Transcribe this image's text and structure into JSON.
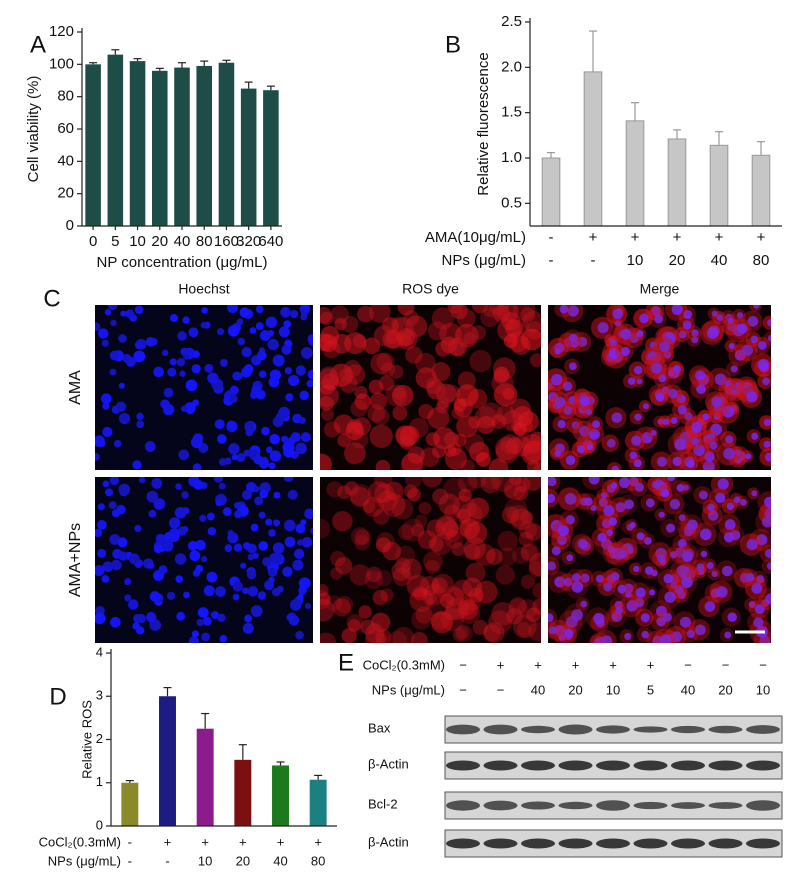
{
  "chart_data": [
    {
      "type": "bar",
      "panel": "A",
      "ylabel": "Cell viability (%)",
      "xlabel": "NP concentration (μg/mL)",
      "categories": [
        "0",
        "5",
        "10",
        "20",
        "40",
        "80",
        "160",
        "320",
        "640"
      ],
      "values": [
        100,
        106,
        102,
        96,
        98,
        99,
        101,
        85,
        84
      ],
      "errors": [
        1,
        3,
        1.5,
        1.5,
        3,
        3,
        1.5,
        4,
        2.5
      ],
      "color": "#1e4d47",
      "ylim": [
        0,
        120
      ],
      "yticks": [
        0,
        20,
        40,
        60,
        80,
        100,
        120
      ]
    },
    {
      "type": "bar",
      "panel": "B",
      "ylabel": "Relative fluorescence",
      "conditions": [
        {
          "label": "AMA(10μg/mL)",
          "values": [
            "-",
            "+",
            "+",
            "+",
            "+",
            "+"
          ]
        },
        {
          "label": "NPs (μg/mL)",
          "values": [
            "-",
            "-",
            "10",
            "20",
            "40",
            "80"
          ]
        }
      ],
      "values": [
        1.0,
        1.95,
        1.41,
        1.21,
        1.14,
        1.03
      ],
      "errors": [
        0.06,
        0.45,
        0.2,
        0.1,
        0.15,
        0.15
      ],
      "color": "#c6c6c6",
      "ylim": [
        0.25,
        2.5
      ],
      "yticks": [
        0.5,
        {
          "value": 1,
          "label": "1.0"
        },
        1.5,
        {
          "value": 2,
          "label": "2.0"
        },
        2.5
      ]
    },
    {
      "type": "bar",
      "panel": "D",
      "ylabel": "Relative ROS",
      "conditions": [
        {
          "label": "CoCl₂(0.3mM)",
          "values": [
            "-",
            "+",
            "+",
            "+",
            "+",
            "+"
          ]
        },
        {
          "label": "NPs (μg/mL)",
          "values": [
            "-",
            "-",
            "10",
            "20",
            "40",
            "80"
          ]
        }
      ],
      "values": [
        1.0,
        3.0,
        2.25,
        1.53,
        1.4,
        1.07
      ],
      "errors": [
        0.05,
        0.2,
        0.35,
        0.35,
        0.08,
        0.1
      ],
      "colors": [
        "#8a8a2a",
        "#1c1c82",
        "#8c1c8c",
        "#7a1010",
        "#1c7a1c",
        "#1c8080"
      ],
      "ylim": [
        0,
        4
      ],
      "yticks": [
        0,
        1,
        2,
        3,
        4
      ]
    }
  ],
  "microscopy": {
    "panel": "C",
    "columns": [
      "Hoechst",
      "ROS dye",
      "Merge"
    ],
    "rows": [
      "AMA",
      "AMA+NPs"
    ]
  },
  "western_blot": {
    "panel": "E",
    "conditions": [
      {
        "label": "CoCl₂(0.3mM)",
        "values": [
          "−",
          "+",
          "+",
          "+",
          "+",
          "+",
          "−",
          "−",
          "−"
        ]
      },
      {
        "label": "NPs (μg/mL)",
        "values": [
          "−",
          "−",
          "40",
          "20",
          "10",
          "5",
          "40",
          "20",
          "10"
        ]
      }
    ],
    "bands": [
      "Bax",
      "β-Actin",
      "Bcl-2",
      "β-Actin"
    ]
  }
}
